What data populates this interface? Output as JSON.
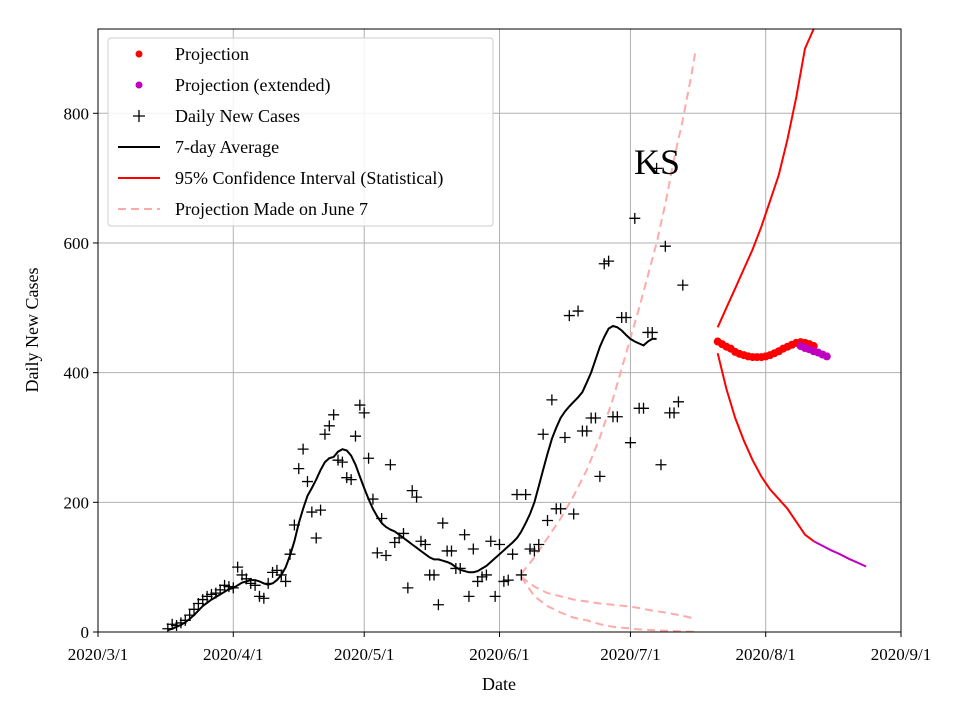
{
  "chart_data": {
    "type": "line",
    "state_label": "KS",
    "xlabel": "Date",
    "ylabel": "Daily New Cases",
    "x_ticks": [
      "2020/3/1",
      "2020/4/1",
      "2020/5/1",
      "2020/6/1",
      "2020/7/1",
      "2020/8/1",
      "2020/9/1"
    ],
    "x_tick_days": [
      0,
      31,
      61,
      92,
      122,
      153,
      184
    ],
    "y_ticks": [
      0,
      200,
      400,
      600,
      800
    ],
    "xlim_days": [
      0,
      184
    ],
    "ylim": [
      0,
      930
    ],
    "grid": true,
    "legend_position": "top-left",
    "legend": [
      {
        "label": "Projection",
        "style": "dot",
        "color": "#ff0000"
      },
      {
        "label": "Projection (extended)",
        "style": "dot",
        "color": "#bf00bf"
      },
      {
        "label": "Daily New Cases",
        "style": "plus",
        "color": "#000000"
      },
      {
        "label": "7-day Average",
        "style": "line",
        "color": "#000000"
      },
      {
        "label": "95% Confidence Interval (Statistical)",
        "style": "line",
        "color": "#ff0000"
      },
      {
        "label": "Projection Made on June 7",
        "style": "dashed",
        "color": "#ffaaaa"
      }
    ],
    "daily_cases": {
      "start_day": 16,
      "values": [
        5,
        12,
        10,
        14,
        18,
        26,
        35,
        44,
        50,
        55,
        58,
        60,
        65,
        72,
        70,
        68,
        100,
        88,
        82,
        75,
        72,
        55,
        52,
        75,
        92,
        95,
        88,
        78,
        120,
        165,
        252,
        282,
        232,
        185,
        145,
        188,
        305,
        318,
        335,
        265,
        262,
        238,
        235,
        302,
        350,
        338,
        268,
        205,
        122,
        175,
        118,
        258,
        138,
        145,
        152,
        68,
        218,
        208,
        140,
        135,
        88,
        88,
        42,
        168,
        125,
        125,
        98,
        98,
        150,
        55,
        128,
        78,
        85,
        88,
        140,
        55,
        135,
        78,
        80,
        120,
        212,
        88,
        212,
        128,
        125,
        135,
        305,
        172,
        358,
        190,
        190,
        300,
        488,
        182,
        495,
        310,
        310,
        330,
        330,
        240,
        568,
        572,
        332,
        332,
        485,
        485,
        292,
        638,
        345,
        345,
        462,
        462,
        715,
        258,
        595,
        338,
        338,
        355,
        535
      ]
    },
    "seven_day_average": {
      "start_day": 16,
      "values": [
        3,
        5,
        8,
        11,
        15,
        20,
        26,
        33,
        40,
        45,
        50,
        54,
        58,
        62,
        66,
        68,
        72,
        76,
        78,
        80,
        80,
        78,
        75,
        73,
        75,
        80,
        88,
        100,
        118,
        140,
        168,
        190,
        210,
        222,
        235,
        250,
        262,
        268,
        270,
        278,
        282,
        280,
        272,
        258,
        240,
        222,
        205,
        190,
        178,
        168,
        162,
        158,
        155,
        150,
        145,
        140,
        135,
        130,
        125,
        120,
        115,
        112,
        112,
        110,
        108,
        105,
        100,
        96,
        94,
        92,
        92,
        94,
        98,
        102,
        108,
        114,
        120,
        126,
        132,
        138,
        145,
        155,
        168,
        182,
        200,
        225,
        250,
        275,
        298,
        315,
        330,
        340,
        348,
        355,
        362,
        370,
        385,
        400,
        420,
        440,
        455,
        468,
        472,
        470,
        465,
        458,
        452,
        448,
        445,
        442,
        448,
        452,
        452
      ]
    },
    "projection": {
      "start_day": 142,
      "values": [
        448,
        444,
        440,
        437,
        432,
        429,
        427,
        425,
        424,
        424,
        424,
        425,
        427,
        430,
        433,
        437,
        440,
        443,
        446,
        447,
        446,
        444,
        441
      ]
    },
    "projection_extended": {
      "start_day": 161,
      "values": [
        441,
        438,
        436,
        433,
        431,
        428,
        425
      ]
    },
    "ci_upper": {
      "x_days": [
        142,
        144,
        146,
        148,
        150,
        152,
        154,
        156,
        158,
        160,
        162,
        164
      ],
      "values": [
        470,
        500,
        530,
        560,
        590,
        625,
        665,
        705,
        760,
        825,
        900,
        930
      ]
    },
    "ci_lower": {
      "x_days": [
        142,
        144,
        146,
        148,
        150,
        152,
        154,
        156,
        158,
        160,
        162,
        164
      ],
      "values": [
        430,
        375,
        330,
        295,
        265,
        240,
        220,
        205,
        190,
        170,
        150,
        140
      ]
    },
    "ci_lower_extended": {
      "x_days": [
        164,
        166,
        168,
        170,
        172,
        174,
        176
      ],
      "values": [
        140,
        133,
        126,
        120,
        113,
        107,
        101
      ]
    },
    "june7_projection_upper": {
      "x_days": [
        97,
        100,
        103,
        106,
        109,
        112,
        115,
        118,
        121,
        124,
        126,
        128,
        130,
        132,
        134,
        136,
        137
      ],
      "values": [
        90,
        115,
        145,
        175,
        210,
        250,
        300,
        360,
        430,
        500,
        550,
        600,
        660,
        730,
        790,
        860,
        900
      ]
    },
    "june7_projection_lower_a": {
      "x_days": [
        97,
        100,
        103,
        106,
        109,
        112,
        115,
        118,
        121,
        124,
        127,
        130,
        134,
        137
      ],
      "values": [
        85,
        70,
        60,
        55,
        50,
        47,
        44,
        42,
        40,
        37,
        33,
        30,
        25,
        20
      ]
    },
    "june7_projection_lower_b": {
      "x_days": [
        97,
        100,
        103,
        106,
        109,
        112,
        115,
        118,
        121,
        124,
        127,
        130,
        134,
        137
      ],
      "values": [
        85,
        55,
        40,
        30,
        22,
        18,
        12,
        8,
        6,
        4,
        3,
        2,
        1,
        0
      ]
    }
  }
}
